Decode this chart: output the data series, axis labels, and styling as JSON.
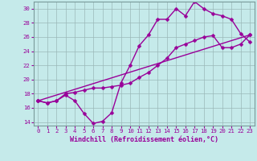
{
  "xlabel": "Windchill (Refroidissement éolien,°C)",
  "bg_color": "#c5eaea",
  "line_color": "#990099",
  "xlim": [
    -0.5,
    23.5
  ],
  "ylim": [
    13.5,
    31.0
  ],
  "yticks": [
    14,
    16,
    18,
    20,
    22,
    24,
    26,
    28,
    30
  ],
  "xticks": [
    0,
    1,
    2,
    3,
    4,
    5,
    6,
    7,
    8,
    9,
    10,
    11,
    12,
    13,
    14,
    15,
    16,
    17,
    18,
    19,
    20,
    21,
    22,
    23
  ],
  "line1_x": [
    0,
    1,
    2,
    3,
    4,
    5,
    6,
    7,
    8,
    9,
    10,
    11,
    12,
    13,
    14,
    15,
    16,
    17,
    18,
    19,
    20,
    21,
    22,
    23
  ],
  "line1_y": [
    17.0,
    16.7,
    17.0,
    17.8,
    17.0,
    15.2,
    13.8,
    14.1,
    15.3,
    19.5,
    22.0,
    24.8,
    26.3,
    28.5,
    28.5,
    30.0,
    29.0,
    31.0,
    30.0,
    29.3,
    29.0,
    28.5,
    26.5,
    25.3
  ],
  "line2_x": [
    0,
    1,
    2,
    3,
    4,
    5,
    6,
    7,
    8,
    9,
    10,
    11,
    12,
    13,
    14,
    15,
    16,
    17,
    18,
    19,
    20,
    21,
    22,
    23
  ],
  "line2_y": [
    17.0,
    16.7,
    17.0,
    18.0,
    18.2,
    18.5,
    18.8,
    18.8,
    19.0,
    19.2,
    19.5,
    20.3,
    21.0,
    22.0,
    23.0,
    24.5,
    25.0,
    25.5,
    26.0,
    26.2,
    24.5,
    24.5,
    25.0,
    26.3
  ],
  "line3_x": [
    0,
    23
  ],
  "line3_y": [
    17.0,
    26.3
  ],
  "markersize": 2.5,
  "linewidth": 1.0,
  "grid_color": "#9ab8b8",
  "label_fontsize": 6.0,
  "tick_fontsize": 5.2
}
